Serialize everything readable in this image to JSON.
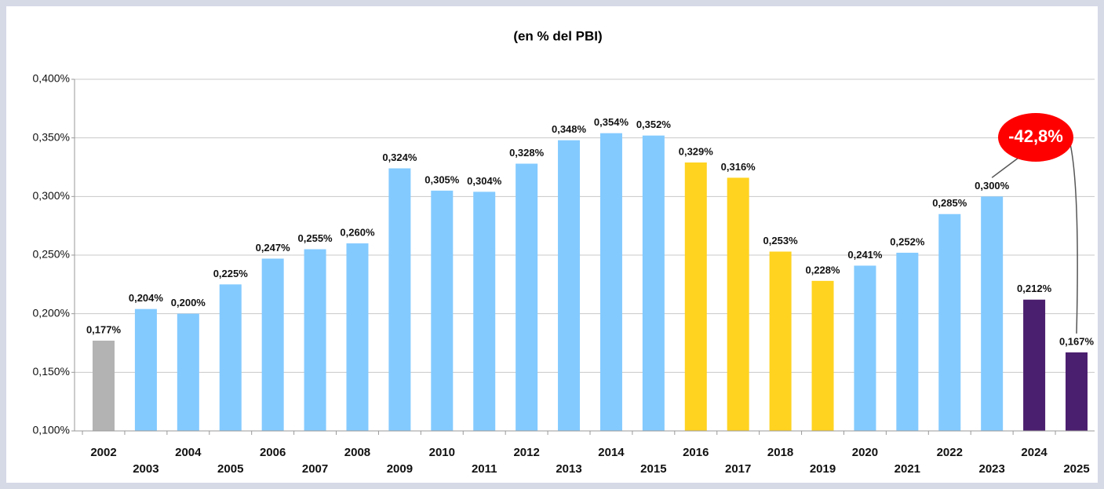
{
  "chart_data": {
    "type": "bar",
    "title": "(en % del PBI)",
    "categories": [
      "2002",
      "2003",
      "2004",
      "2005",
      "2006",
      "2007",
      "2008",
      "2009",
      "2010",
      "2011",
      "2012",
      "2013",
      "2014",
      "2015",
      "2016",
      "2017",
      "2018",
      "2019",
      "2020",
      "2021",
      "2022",
      "2023",
      "2024",
      "2025"
    ],
    "values": [
      0.177,
      0.204,
      0.2,
      0.225,
      0.247,
      0.255,
      0.26,
      0.324,
      0.305,
      0.304,
      0.328,
      0.348,
      0.354,
      0.352,
      0.329,
      0.316,
      0.253,
      0.228,
      0.241,
      0.252,
      0.285,
      0.3,
      0.212,
      0.167
    ],
    "value_labels": [
      "0,177%",
      "0,204%",
      "0,200%",
      "0,225%",
      "0,247%",
      "0,255%",
      "0,260%",
      "0,324%",
      "0,305%",
      "0,304%",
      "0,328%",
      "0,348%",
      "0,354%",
      "0,352%",
      "0,329%",
      "0,316%",
      "0,253%",
      "0,228%",
      "0,241%",
      "0,252%",
      "0,285%",
      "0,300%",
      "0,212%",
      "0,167%"
    ],
    "colors": [
      "#b3b3b3",
      "#83caff",
      "#83caff",
      "#83caff",
      "#83caff",
      "#83caff",
      "#83caff",
      "#83caff",
      "#83caff",
      "#83caff",
      "#83caff",
      "#83caff",
      "#83caff",
      "#83caff",
      "#ffd320",
      "#ffd320",
      "#ffd320",
      "#ffd320",
      "#83caff",
      "#83caff",
      "#83caff",
      "#83caff",
      "#4b1f6f",
      "#4b1f6f"
    ],
    "ylim": [
      0.1,
      0.4
    ],
    "yticks": [
      {
        "value": 0.1,
        "label": "0,100%"
      },
      {
        "value": 0.15,
        "label": "0,150%"
      },
      {
        "value": 0.2,
        "label": "0,200%"
      },
      {
        "value": 0.25,
        "label": "0,250%"
      },
      {
        "value": 0.3,
        "label": "0,300%"
      },
      {
        "value": 0.35,
        "label": "0,350%"
      },
      {
        "value": 0.4,
        "label": "0,400%"
      }
    ],
    "grid": true,
    "annotation": "-42,8%"
  }
}
